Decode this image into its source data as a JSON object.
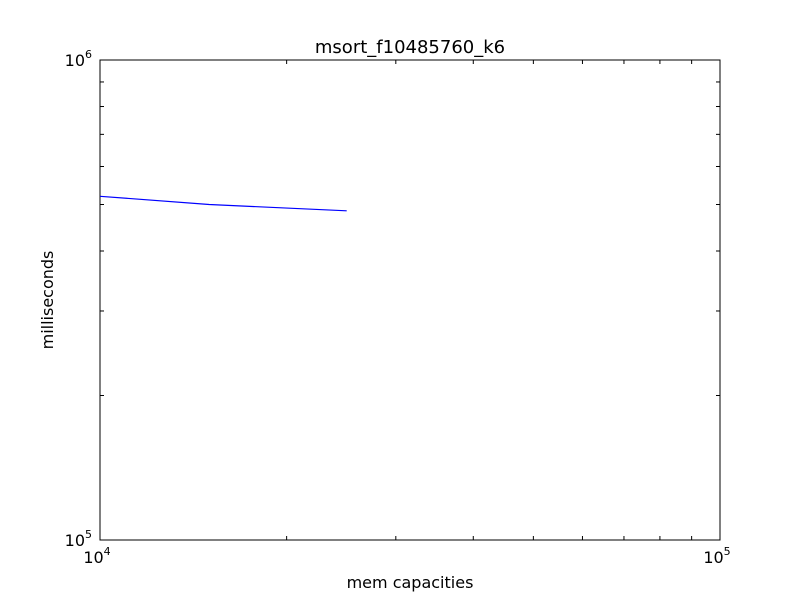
{
  "chart_data": {
    "type": "line",
    "title": "msort_f10485760_k6",
    "xlabel": "mem capacities",
    "ylabel": "milliseconds",
    "xscale": "log",
    "yscale": "log",
    "xlim": [
      10000,
      100000
    ],
    "ylim": [
      100000,
      1000000
    ],
    "x_ticks": [
      {
        "value": 10000,
        "base": "10",
        "exp": "4"
      },
      {
        "value": 100000,
        "base": "10",
        "exp": "5"
      }
    ],
    "y_ticks": [
      {
        "value": 100000,
        "base": "10",
        "exp": "5"
      },
      {
        "value": 1000000,
        "base": "10",
        "exp": "6"
      }
    ],
    "grid": false,
    "legend": "none",
    "series": [
      {
        "color": "#0000ff",
        "x": [
          10000,
          15000,
          25000
        ],
        "y": [
          520000,
          500000,
          485000
        ]
      }
    ]
  }
}
